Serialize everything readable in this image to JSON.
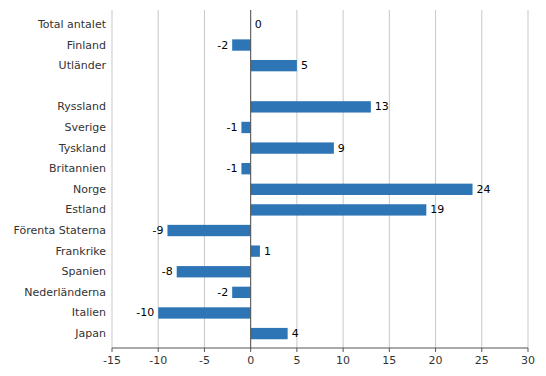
{
  "chart_data": {
    "type": "bar",
    "orientation": "horizontal",
    "categories": [
      "Japan",
      "Italien",
      "Nederländerna",
      "Spanien",
      "Frankrike",
      "Förenta Staterna",
      "Estland",
      "Norge",
      "Britannien",
      "Tyskland",
      "Sverige",
      "Ryssland",
      null,
      "Utländer",
      "Finland",
      "Total antalet"
    ],
    "values": [
      4,
      -10,
      -2,
      -8,
      1,
      -9,
      19,
      24,
      -1,
      9,
      -1,
      13,
      null,
      5,
      -2,
      0
    ],
    "color": "#2E75B6",
    "xlim": [
      -15,
      30
    ],
    "xticks": [
      -15,
      -10,
      -5,
      0,
      5,
      10,
      15,
      20,
      25,
      30
    ],
    "grid": true,
    "data_labels": true
  }
}
